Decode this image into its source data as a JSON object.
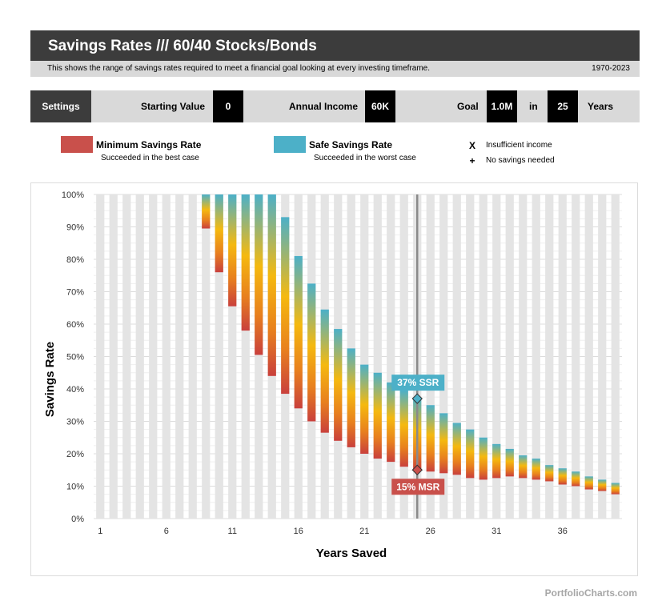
{
  "header": {
    "title": "Savings Rates /// 60/40 Stocks/Bonds",
    "description": "This shows the range of savings rates required to meet a financial goal looking at every investing timeframe.",
    "period": "1970-2023"
  },
  "settings": {
    "button_label": "Settings",
    "starting_value_label": "Starting Value",
    "starting_value": "0",
    "annual_income_label": "Annual Income",
    "annual_income": "60K",
    "goal_label": "Goal",
    "goal_value": "1.0M",
    "in_label": "in",
    "years_value": "25",
    "years_label": "Years"
  },
  "legend": {
    "min_name": "Minimum Savings Rate",
    "min_desc": "Succeeded in the best case",
    "min_color": "#c9504b",
    "safe_name": "Safe Savings Rate",
    "safe_desc": "Succeeded in the worst case",
    "safe_color": "#4cb0c8",
    "x_mark": "X",
    "x_desc": "Insufficient income",
    "plus_mark": "+",
    "plus_desc": "No savings needed"
  },
  "footer": {
    "brand": "PortfolioCharts.com"
  },
  "chart_data": {
    "type": "bar",
    "xlabel": "Years Saved",
    "ylabel": "Savings Rate",
    "x_ticks": [
      "1",
      "6",
      "11",
      "16",
      "21",
      "26",
      "31",
      "36"
    ],
    "y_ticks": [
      "0%",
      "10%",
      "20%",
      "30%",
      "40%",
      "50%",
      "60%",
      "70%",
      "80%",
      "90%",
      "100%"
    ],
    "ylim": [
      0,
      100
    ],
    "years": [
      1,
      2,
      3,
      4,
      5,
      6,
      7,
      8,
      9,
      10,
      11,
      12,
      13,
      14,
      15,
      16,
      17,
      18,
      19,
      20,
      21,
      22,
      23,
      24,
      25,
      26,
      27,
      28,
      29,
      30,
      31,
      32,
      33,
      34,
      35,
      36,
      37,
      38,
      39,
      40
    ],
    "minimum_rate": [
      null,
      null,
      null,
      null,
      null,
      null,
      null,
      null,
      89.5,
      76,
      65.5,
      58,
      50.5,
      44,
      38.5,
      34,
      30,
      26.5,
      24,
      22,
      20,
      18.5,
      17.5,
      16,
      15,
      14.5,
      14,
      13.5,
      12.5,
      12,
      12.5,
      13,
      12.5,
      12,
      11.5,
      10.5,
      10,
      9,
      8.5,
      7.5
    ],
    "safe_rate": [
      null,
      null,
      null,
      null,
      null,
      null,
      null,
      null,
      100,
      100,
      100,
      100,
      100,
      100,
      93,
      81,
      72.5,
      64.5,
      58.5,
      52.5,
      47.5,
      45,
      42,
      39.5,
      37,
      35,
      32.5,
      29.5,
      27.5,
      25,
      23,
      21.5,
      19.5,
      18.5,
      16.5,
      15.5,
      14.5,
      13,
      12,
      11
    ],
    "marker_year": 25,
    "ssr_label": "37%  SSR",
    "msr_label": "15%  MSR",
    "grid": true
  }
}
